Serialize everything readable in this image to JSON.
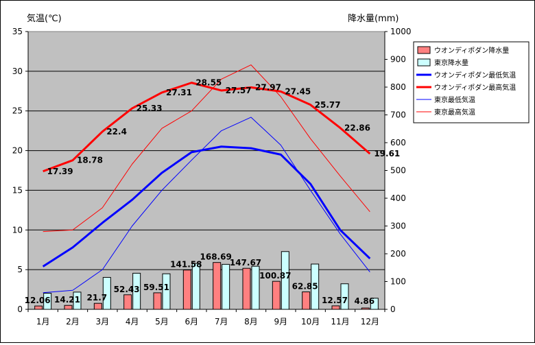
{
  "chart_data": {
    "type": "bar+line",
    "categories": [
      "1月",
      "2月",
      "3月",
      "4月",
      "5月",
      "6月",
      "7月",
      "8月",
      "9月",
      "10月",
      "11月",
      "12月"
    ],
    "ylabel_left": "気温(℃)",
    "ylabel_right": "降水量(mm)",
    "ylim_left": [
      0,
      35
    ],
    "yticks_left": [
      0,
      5,
      10,
      15,
      20,
      25,
      30,
      35
    ],
    "ylim_right": [
      0,
      1000
    ],
    "yticks_right": [
      0,
      100,
      200,
      300,
      400,
      500,
      600,
      700,
      800,
      900,
      1000
    ],
    "grid": "horizontal",
    "legend_position": "right",
    "bar_series": [
      {
        "name": "ウオンディポダン降水量",
        "color": "#ff8080",
        "values": [
          12.06,
          14.21,
          21.7,
          52.43,
          59.51,
          141.58,
          168.69,
          147.67,
          100.87,
          62.85,
          12.57,
          4.86
        ],
        "show_labels": true
      },
      {
        "name": "東京降水量",
        "color": "#ccffff",
        "values": [
          58,
          62,
          115,
          130,
          128,
          165,
          162,
          155,
          208,
          163,
          92,
          40
        ],
        "show_labels": false
      }
    ],
    "line_series": [
      {
        "name": "ウオンディポダン最低気温",
        "color": "#0000ff",
        "width": 3,
        "values": [
          5.4,
          7.8,
          10.9,
          13.8,
          17.2,
          19.8,
          20.5,
          20.3,
          19.5,
          15.8,
          10.0,
          6.4
        ],
        "show_labels": false
      },
      {
        "name": "ウオンディポダン最高気温",
        "color": "#ff0000",
        "width": 3,
        "values": [
          17.39,
          18.78,
          22.4,
          25.33,
          27.31,
          28.55,
          27.57,
          27.97,
          27.45,
          25.77,
          22.86,
          19.61
        ],
        "show_labels": true
      },
      {
        "name": "東京最低気温",
        "color": "#0000ff",
        "width": 1,
        "values": [
          2.1,
          2.4,
          5.0,
          10.5,
          15.0,
          18.8,
          22.5,
          24.2,
          20.7,
          15.0,
          9.5,
          4.7
        ],
        "show_labels": false
      },
      {
        "name": "東京最高気温",
        "color": "#ff0000",
        "width": 1,
        "values": [
          9.8,
          10.0,
          12.8,
          18.3,
          22.8,
          25.0,
          29.0,
          30.8,
          26.8,
          21.5,
          16.8,
          12.3
        ],
        "show_labels": false
      }
    ]
  }
}
